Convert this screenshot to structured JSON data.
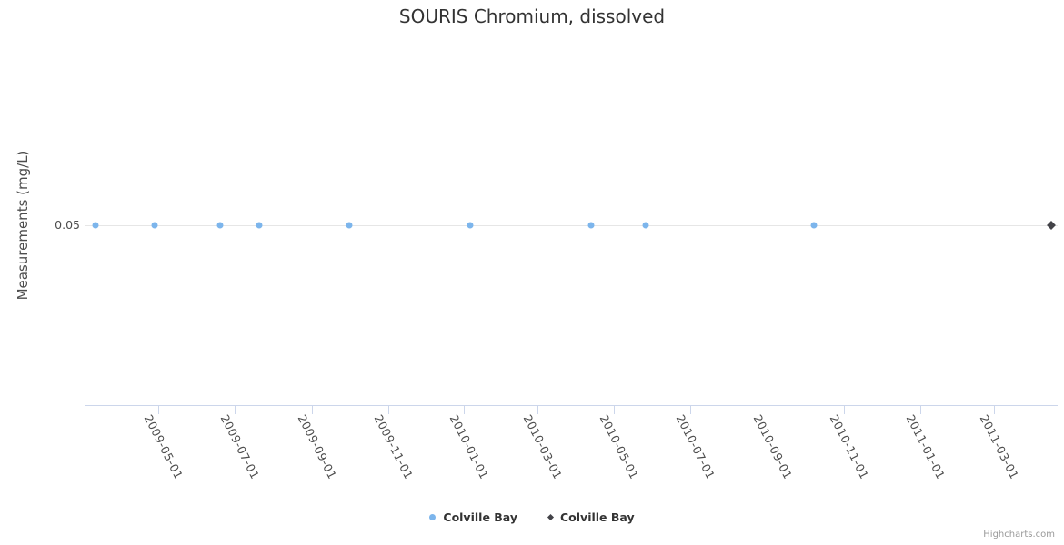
{
  "chart_data": {
    "type": "scatter",
    "title": "SOURIS Chromium, dissolved",
    "xlabel": "",
    "ylabel": "Measurements (mg/L)",
    "xlim": [
      "2009-03-04",
      "2011-04-21"
    ],
    "ylim": [
      0,
      0.1
    ],
    "x_ticks": [
      "2009-05-01",
      "2009-07-01",
      "2009-09-01",
      "2009-11-01",
      "2010-01-01",
      "2010-03-01",
      "2010-05-01",
      "2010-07-01",
      "2010-09-01",
      "2010-11-01",
      "2011-01-01",
      "2011-03-01"
    ],
    "y_ticks": [
      {
        "value": 0.05,
        "label": "0.05"
      }
    ],
    "grid": "horizontal-only",
    "legend_position": "bottom-center",
    "series": [
      {
        "name": "Colville Bay",
        "marker": "circle",
        "color": "#7cb5ec",
        "x": [
          "2009-03-12",
          "2009-04-28",
          "2009-06-20",
          "2009-07-21",
          "2009-10-01",
          "2010-01-06",
          "2010-04-13",
          "2010-05-26",
          "2010-10-08"
        ],
        "y": [
          0.05,
          0.05,
          0.05,
          0.05,
          0.05,
          0.05,
          0.05,
          0.05,
          0.05
        ]
      },
      {
        "name": "Colville Bay",
        "marker": "diamond",
        "color": "#434348",
        "x": [
          "2011-04-16"
        ],
        "y": [
          0.05
        ]
      }
    ],
    "colors": {
      "grid_line": "#e6e6e6",
      "axis_line": "#ccd6eb",
      "tick": "#ccd6eb",
      "title_text": "#333333",
      "axis_label_text": "#4d4d4d",
      "legend_text": "#333333",
      "credit_text": "#999999"
    },
    "credit": "Highcharts.com"
  }
}
